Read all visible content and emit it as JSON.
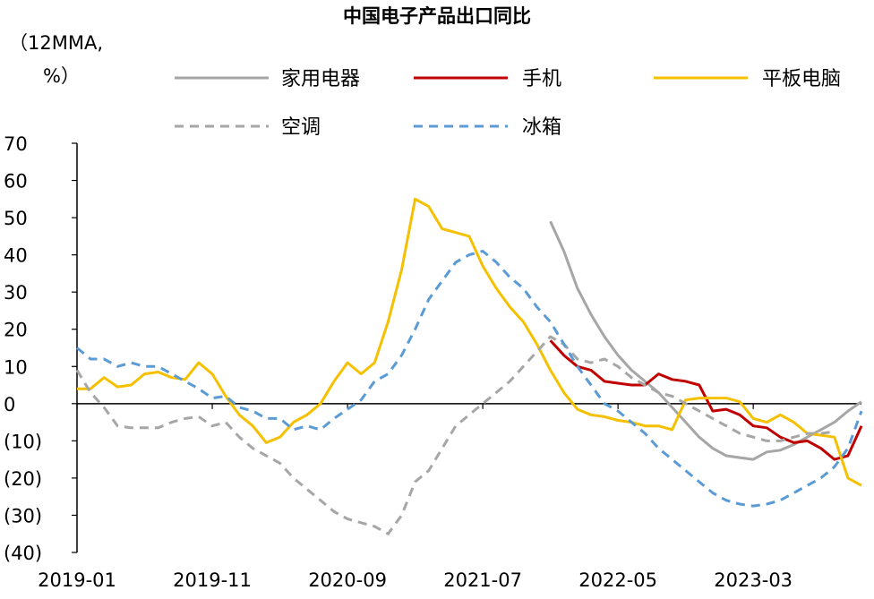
{
  "chart_data": {
    "type": "line",
    "title": "中国电子产品出口同比",
    "ylabel_line1": "（12MMA,",
    "ylabel_line2": "%）",
    "ylim": [
      -40,
      70
    ],
    "yticks": [
      70,
      60,
      50,
      40,
      30,
      20,
      10,
      0,
      -10,
      -20,
      -30,
      -40
    ],
    "ytick_labels": [
      "70",
      "60",
      "50",
      "40",
      "30",
      "20",
      "10",
      "0",
      "(10)",
      "(20)",
      "(30)",
      "(40)"
    ],
    "x_start": "2019-01",
    "x_end": "2023-11",
    "xtick_labels": [
      "2019-01",
      "2019-11",
      "2020-09",
      "2021-07",
      "2022-05",
      "2023-03"
    ],
    "grid": false,
    "legend_position": "top",
    "series": [
      {
        "name": "家用电器",
        "color": "#a6a6a6",
        "dash": "solid",
        "points": [
          [
            "2021-12",
            49
          ],
          [
            "2022-01",
            41
          ],
          [
            "2022-02",
            31
          ],
          [
            "2022-03",
            24
          ],
          [
            "2022-04",
            18
          ],
          [
            "2022-05",
            13
          ],
          [
            "2022-06",
            9
          ],
          [
            "2022-07",
            6
          ],
          [
            "2022-08",
            3
          ],
          [
            "2022-09",
            -1
          ],
          [
            "2022-10",
            -5
          ],
          [
            "2022-11",
            -9
          ],
          [
            "2022-12",
            -12
          ],
          [
            "2023-01",
            -14
          ],
          [
            "2023-02",
            -14.5
          ],
          [
            "2023-03",
            -15
          ],
          [
            "2023-04",
            -13
          ],
          [
            "2023-05",
            -12.5
          ],
          [
            "2023-06",
            -11
          ],
          [
            "2023-07",
            -9
          ],
          [
            "2023-08",
            -7
          ],
          [
            "2023-09",
            -5
          ],
          [
            "2023-10",
            -2
          ],
          [
            "2023-11",
            0.5
          ]
        ]
      },
      {
        "name": "手机",
        "color": "#c00000",
        "dash": "solid",
        "points": [
          [
            "2021-12",
            17
          ],
          [
            "2022-01",
            13
          ],
          [
            "2022-02",
            10
          ],
          [
            "2022-03",
            9
          ],
          [
            "2022-04",
            6
          ],
          [
            "2022-05",
            5.5
          ],
          [
            "2022-06",
            5
          ],
          [
            "2022-07",
            5
          ],
          [
            "2022-08",
            8
          ],
          [
            "2022-09",
            6.5
          ],
          [
            "2022-10",
            6
          ],
          [
            "2022-11",
            5
          ],
          [
            "2022-12",
            -2
          ],
          [
            "2023-01",
            -1.5
          ],
          [
            "2023-02",
            -3
          ],
          [
            "2023-03",
            -6
          ],
          [
            "2023-04",
            -6.5
          ],
          [
            "2023-05",
            -9
          ],
          [
            "2023-06",
            -10.5
          ],
          [
            "2023-07",
            -10
          ],
          [
            "2023-08",
            -12
          ],
          [
            "2023-09",
            -15
          ],
          [
            "2023-10",
            -14
          ],
          [
            "2023-11",
            -6
          ]
        ]
      },
      {
        "name": "平板电脑",
        "color": "#f5c000",
        "dash": "solid",
        "points": [
          [
            "2019-01",
            4
          ],
          [
            "2019-02",
            4
          ],
          [
            "2019-03",
            7
          ],
          [
            "2019-04",
            4.5
          ],
          [
            "2019-05",
            5
          ],
          [
            "2019-06",
            8
          ],
          [
            "2019-07",
            8.5
          ],
          [
            "2019-08",
            7
          ],
          [
            "2019-09",
            6.5
          ],
          [
            "2019-10",
            11
          ],
          [
            "2019-11",
            8
          ],
          [
            "2019-12",
            2
          ],
          [
            "2020-01",
            -3
          ],
          [
            "2020-02",
            -6
          ],
          [
            "2020-03",
            -10.5
          ],
          [
            "2020-04",
            -9
          ],
          [
            "2020-05",
            -5
          ],
          [
            "2020-06",
            -3
          ],
          [
            "2020-07",
            0
          ],
          [
            "2020-08",
            6
          ],
          [
            "2020-09",
            11
          ],
          [
            "2020-10",
            8
          ],
          [
            "2020-11",
            11
          ],
          [
            "2020-12",
            22
          ],
          [
            "2021-01",
            36
          ],
          [
            "2021-02",
            55
          ],
          [
            "2021-03",
            53
          ],
          [
            "2021-04",
            47
          ],
          [
            "2021-05",
            46
          ],
          [
            "2021-06",
            45
          ],
          [
            "2021-07",
            37
          ],
          [
            "2021-08",
            31
          ],
          [
            "2021-09",
            26
          ],
          [
            "2021-10",
            22
          ],
          [
            "2021-11",
            16
          ],
          [
            "2021-12",
            9
          ],
          [
            "2022-01",
            3
          ],
          [
            "2022-02",
            -1.5
          ],
          [
            "2022-03",
            -3
          ],
          [
            "2022-04",
            -3.5
          ],
          [
            "2022-05",
            -4.5
          ],
          [
            "2022-06",
            -5
          ],
          [
            "2022-07",
            -6
          ],
          [
            "2022-08",
            -6
          ],
          [
            "2022-09",
            -7
          ],
          [
            "2022-10",
            1
          ],
          [
            "2022-11",
            1.5
          ],
          [
            "2022-12",
            1.5
          ],
          [
            "2023-01",
            1.5
          ],
          [
            "2023-02",
            0.5
          ],
          [
            "2023-03",
            -4
          ],
          [
            "2023-04",
            -5
          ],
          [
            "2023-05",
            -3
          ],
          [
            "2023-06",
            -5
          ],
          [
            "2023-07",
            -8
          ],
          [
            "2023-08",
            -8.5
          ],
          [
            "2023-09",
            -9
          ],
          [
            "2023-10",
            -20
          ],
          [
            "2023-11",
            -22
          ]
        ]
      },
      {
        "name": "空调",
        "color": "#a6a6a6",
        "dash": "dashed",
        "points": [
          [
            "2019-01",
            9
          ],
          [
            "2019-02",
            3
          ],
          [
            "2019-03",
            -1
          ],
          [
            "2019-04",
            -6
          ],
          [
            "2019-05",
            -6.5
          ],
          [
            "2019-06",
            -6.5
          ],
          [
            "2019-07",
            -6.5
          ],
          [
            "2019-08",
            -5
          ],
          [
            "2019-09",
            -4
          ],
          [
            "2019-10",
            -3.5
          ],
          [
            "2019-11",
            -6
          ],
          [
            "2019-12",
            -5
          ],
          [
            "2020-01",
            -9
          ],
          [
            "2020-02",
            -12
          ],
          [
            "2020-03",
            -14
          ],
          [
            "2020-04",
            -16
          ],
          [
            "2020-05",
            -20
          ],
          [
            "2020-06",
            -23
          ],
          [
            "2020-07",
            -26
          ],
          [
            "2020-08",
            -29
          ],
          [
            "2020-09",
            -31
          ],
          [
            "2020-10",
            -32
          ],
          [
            "2020-11",
            -33
          ],
          [
            "2020-12",
            -35
          ],
          [
            "2021-01",
            -30
          ],
          [
            "2021-02",
            -21
          ],
          [
            "2021-03",
            -18
          ],
          [
            "2021-04",
            -12
          ],
          [
            "2021-05",
            -6
          ],
          [
            "2021-06",
            -3
          ],
          [
            "2021-07",
            0
          ],
          [
            "2021-08",
            3
          ],
          [
            "2021-09",
            6
          ],
          [
            "2021-10",
            10
          ],
          [
            "2021-11",
            14
          ],
          [
            "2021-12",
            18
          ],
          [
            "2022-01",
            16
          ],
          [
            "2022-02",
            12
          ],
          [
            "2022-03",
            11
          ],
          [
            "2022-04",
            12
          ],
          [
            "2022-05",
            10
          ],
          [
            "2022-06",
            7
          ],
          [
            "2022-07",
            5
          ],
          [
            "2022-08",
            3
          ],
          [
            "2022-09",
            2
          ],
          [
            "2022-10",
            0
          ],
          [
            "2022-11",
            -2
          ],
          [
            "2022-12",
            -4
          ],
          [
            "2023-01",
            -6
          ],
          [
            "2023-02",
            -8
          ],
          [
            "2023-03",
            -9
          ],
          [
            "2023-04",
            -10
          ],
          [
            "2023-05",
            -10
          ],
          [
            "2023-06",
            -9
          ],
          [
            "2023-07",
            -8
          ],
          [
            "2023-08",
            -8
          ],
          [
            "2023-09",
            -7.5
          ]
        ]
      },
      {
        "name": "冰箱",
        "color": "#5b9bd5",
        "dash": "dashed",
        "points": [
          [
            "2019-01",
            15
          ],
          [
            "2019-02",
            12
          ],
          [
            "2019-03",
            12
          ],
          [
            "2019-04",
            10
          ],
          [
            "2019-05",
            11
          ],
          [
            "2019-06",
            10
          ],
          [
            "2019-07",
            10
          ],
          [
            "2019-08",
            8
          ],
          [
            "2019-09",
            6
          ],
          [
            "2019-10",
            4
          ],
          [
            "2019-11",
            1.5
          ],
          [
            "2019-12",
            2
          ],
          [
            "2020-01",
            -1
          ],
          [
            "2020-02",
            -2
          ],
          [
            "2020-03",
            -4
          ],
          [
            "2020-04",
            -4
          ],
          [
            "2020-05",
            -7
          ],
          [
            "2020-06",
            -6
          ],
          [
            "2020-07",
            -7
          ],
          [
            "2020-08",
            -4
          ],
          [
            "2020-09",
            -1.5
          ],
          [
            "2020-10",
            1
          ],
          [
            "2020-11",
            6
          ],
          [
            "2020-12",
            8
          ],
          [
            "2021-01",
            13
          ],
          [
            "2021-02",
            20
          ],
          [
            "2021-03",
            28
          ],
          [
            "2021-04",
            33
          ],
          [
            "2021-05",
            38
          ],
          [
            "2021-06",
            40
          ],
          [
            "2021-07",
            41
          ],
          [
            "2021-08",
            38
          ],
          [
            "2021-09",
            34
          ],
          [
            "2021-10",
            31
          ],
          [
            "2021-11",
            26
          ],
          [
            "2021-12",
            22
          ],
          [
            "2022-01",
            16
          ],
          [
            "2022-02",
            10
          ],
          [
            "2022-03",
            5
          ],
          [
            "2022-04",
            0
          ],
          [
            "2022-05",
            -2
          ],
          [
            "2022-06",
            -5
          ],
          [
            "2022-07",
            -8
          ],
          [
            "2022-08",
            -12
          ],
          [
            "2022-09",
            -15
          ],
          [
            "2022-10",
            -18
          ],
          [
            "2022-11",
            -21
          ],
          [
            "2022-12",
            -24
          ],
          [
            "2023-01",
            -26
          ],
          [
            "2023-02",
            -27
          ],
          [
            "2023-03",
            -27.5
          ],
          [
            "2023-04",
            -27
          ],
          [
            "2023-05",
            -26
          ],
          [
            "2023-06",
            -24
          ],
          [
            "2023-07",
            -22
          ],
          [
            "2023-08",
            -20
          ],
          [
            "2023-09",
            -17
          ],
          [
            "2023-10",
            -12
          ],
          [
            "2023-11",
            -2
          ]
        ]
      }
    ]
  }
}
